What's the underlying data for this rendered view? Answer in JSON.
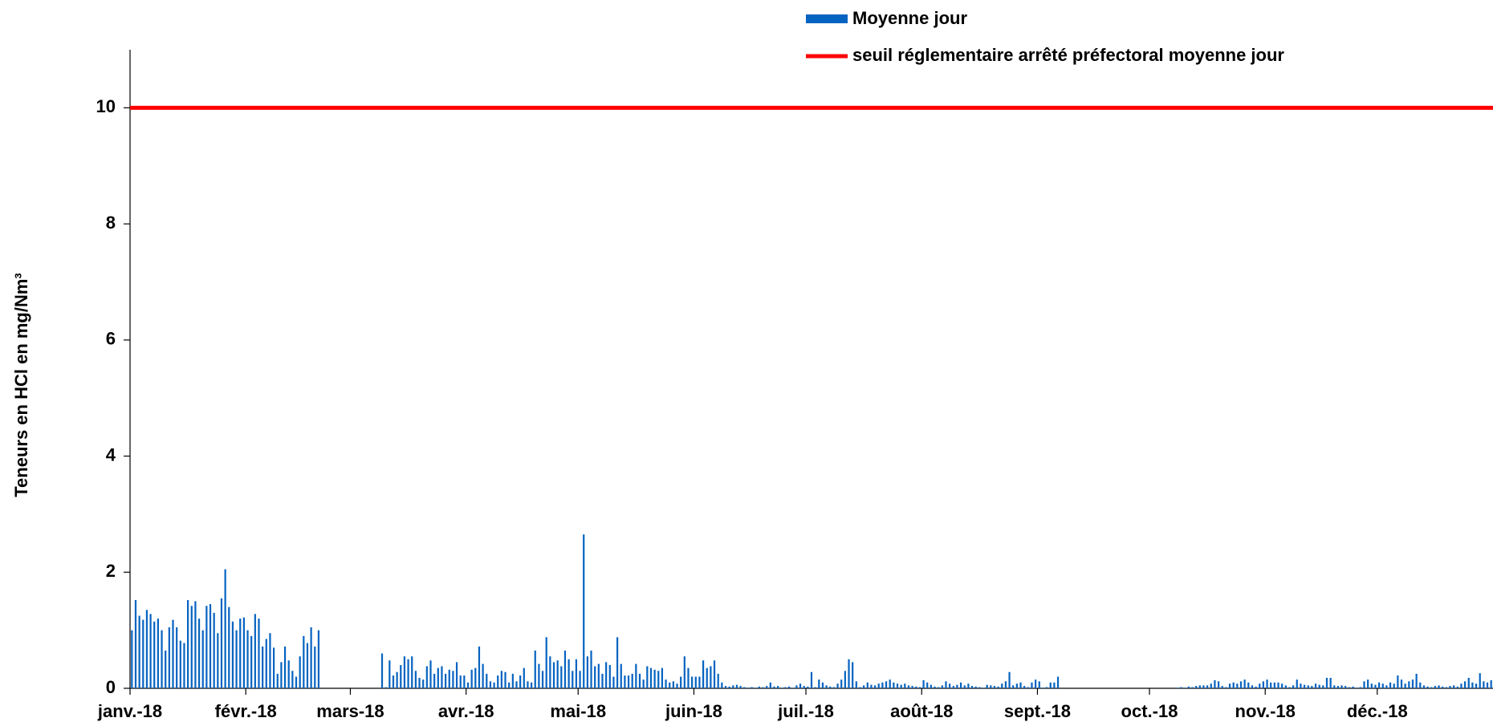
{
  "chart_data": {
    "type": "bar",
    "y_label": "Teneurs en HCl en mg/Nm³",
    "categories": [
      "janv.-18",
      null,
      null,
      null,
      null,
      null,
      null,
      null,
      null,
      null,
      null,
      null,
      null,
      null,
      null,
      null,
      null,
      null,
      null,
      null,
      null,
      null,
      null,
      null,
      null,
      null,
      null,
      null,
      null,
      null,
      null,
      "févr.-18",
      null,
      null,
      null,
      null,
      null,
      null,
      null,
      null,
      null,
      null,
      null,
      null,
      null,
      null,
      null,
      null,
      null,
      null,
      null,
      null,
      null,
      null,
      null,
      null,
      null,
      null,
      null,
      "mars-18",
      null,
      null,
      null,
      null,
      null,
      null,
      null,
      null,
      null,
      null,
      null,
      null,
      null,
      null,
      null,
      null,
      null,
      null,
      null,
      null,
      null,
      null,
      null,
      null,
      null,
      null,
      null,
      null,
      null,
      null,
      "avr.-18",
      null,
      null,
      null,
      null,
      null,
      null,
      null,
      null,
      null,
      null,
      null,
      null,
      null,
      null,
      null,
      null,
      null,
      null,
      null,
      null,
      null,
      null,
      null,
      null,
      null,
      null,
      null,
      null,
      null,
      "mai-18",
      null,
      null,
      null,
      null,
      null,
      null,
      null,
      null,
      null,
      null,
      null,
      null,
      null,
      null,
      null,
      null,
      null,
      null,
      null,
      null,
      null,
      null,
      null,
      null,
      null,
      null,
      null,
      null,
      null,
      null,
      "juin-18",
      null,
      null,
      null,
      null,
      null,
      null,
      null,
      null,
      null,
      null,
      null,
      null,
      null,
      null,
      null,
      null,
      null,
      null,
      null,
      null,
      null,
      null,
      null,
      null,
      null,
      null,
      null,
      null,
      null,
      "juil.-18",
      null,
      null,
      null,
      null,
      null,
      null,
      null,
      null,
      null,
      null,
      null,
      null,
      null,
      null,
      null,
      null,
      null,
      null,
      null,
      null,
      null,
      null,
      null,
      null,
      null,
      null,
      null,
      null,
      null,
      null,
      "août-18",
      null,
      null,
      null,
      null,
      null,
      null,
      null,
      null,
      null,
      null,
      null,
      null,
      null,
      null,
      null,
      null,
      null,
      null,
      null,
      null,
      null,
      null,
      null,
      null,
      null,
      null,
      null,
      null,
      null,
      null,
      "sept.-18",
      null,
      null,
      null,
      null,
      null,
      null,
      null,
      null,
      null,
      null,
      null,
      null,
      null,
      null,
      null,
      null,
      null,
      null,
      null,
      null,
      null,
      null,
      null,
      null,
      null,
      null,
      null,
      null,
      null,
      "oct.-18",
      null,
      null,
      null,
      null,
      null,
      null,
      null,
      null,
      null,
      null,
      null,
      null,
      null,
      null,
      null,
      null,
      null,
      null,
      null,
      null,
      null,
      null,
      null,
      null,
      null,
      null,
      null,
      null,
      null,
      null,
      "nov.-18",
      null,
      null,
      null,
      null,
      null,
      null,
      null,
      null,
      null,
      null,
      null,
      null,
      null,
      null,
      null,
      null,
      null,
      null,
      null,
      null,
      null,
      null,
      null,
      null,
      null,
      null,
      null,
      null,
      null,
      "déc.-18",
      null,
      null,
      null,
      null,
      null,
      null,
      null,
      null,
      null,
      null,
      null,
      null,
      null,
      null,
      null,
      null,
      null,
      null,
      null,
      null,
      null,
      null,
      null,
      null,
      null,
      null,
      null,
      null,
      null,
      null
    ],
    "series": [
      {
        "name": "Moyenne jour",
        "color": "#0563c1",
        "values": [
          1.0,
          1.52,
          1.25,
          1.18,
          1.35,
          1.28,
          1.15,
          1.2,
          1.0,
          0.65,
          1.05,
          1.18,
          1.05,
          0.82,
          0.78,
          1.52,
          1.42,
          1.5,
          1.2,
          1.0,
          1.42,
          1.45,
          1.3,
          0.95,
          1.55,
          2.05,
          1.4,
          1.15,
          1.0,
          1.2,
          1.22,
          1.0,
          0.9,
          1.28,
          1.2,
          0.72,
          0.85,
          0.95,
          0.7,
          0.25,
          0.45,
          0.72,
          0.48,
          0.3,
          0.2,
          0.55,
          0.9,
          0.78,
          1.05,
          0.72,
          1.0,
          null,
          null,
          null,
          null,
          null,
          null,
          null,
          null,
          null,
          null,
          null,
          null,
          null,
          null,
          null,
          null,
          0.6,
          0.02,
          0.48,
          0.22,
          0.28,
          0.4,
          0.55,
          0.5,
          0.55,
          0.3,
          0.18,
          0.15,
          0.38,
          0.48,
          0.25,
          0.35,
          0.38,
          0.25,
          0.32,
          0.3,
          0.45,
          0.22,
          0.22,
          0.1,
          0.32,
          0.35,
          0.72,
          0.42,
          0.25,
          0.12,
          0.1,
          0.22,
          0.3,
          0.28,
          0.1,
          0.25,
          0.12,
          0.22,
          0.35,
          0.12,
          0.1,
          0.65,
          0.42,
          0.3,
          0.88,
          0.55,
          0.45,
          0.48,
          0.38,
          0.65,
          0.5,
          0.3,
          0.5,
          0.3,
          2.65,
          0.55,
          0.65,
          0.38,
          0.42,
          0.25,
          0.45,
          0.4,
          0.2,
          0.88,
          0.42,
          0.22,
          0.22,
          0.25,
          0.42,
          0.25,
          0.15,
          0.38,
          0.35,
          0.32,
          0.3,
          0.35,
          0.15,
          0.1,
          0.12,
          0.08,
          0.2,
          0.55,
          0.35,
          0.2,
          0.2,
          0.2,
          0.48,
          0.35,
          0.38,
          0.48,
          0.25,
          0.1,
          0.04,
          0.03,
          0.05,
          0.06,
          0.04,
          0.02,
          0.01,
          0.02,
          0.01,
          0.03,
          0.02,
          0.04,
          0.1,
          0.03,
          0.04,
          0.01,
          0.02,
          0.03,
          0.01,
          0.05,
          0.08,
          0.04,
          0.03,
          0.28,
          0.02,
          0.15,
          0.1,
          0.05,
          0.03,
          0.02,
          0.08,
          0.15,
          0.3,
          0.5,
          0.45,
          0.12,
          0.02,
          0.05,
          0.1,
          0.06,
          0.05,
          0.08,
          0.1,
          0.12,
          0.15,
          0.1,
          0.08,
          0.06,
          0.08,
          0.05,
          0.04,
          0.03,
          0.02,
          0.14,
          0.1,
          0.06,
          0.03,
          0.02,
          0.05,
          0.12,
          0.08,
          0.04,
          0.06,
          0.1,
          0.05,
          0.08,
          0.04,
          0.03,
          0.02,
          0.01,
          0.06,
          0.05,
          0.04,
          0.03,
          0.08,
          0.12,
          0.28,
          0.05,
          0.08,
          0.1,
          0.04,
          0.02,
          0.1,
          0.15,
          0.12,
          0.01,
          0.02,
          0.1,
          0.1,
          0.2,
          null,
          null,
          null,
          null,
          null,
          null,
          null,
          null,
          null,
          null,
          null,
          null,
          null,
          null,
          null,
          null,
          null,
          null,
          null,
          null,
          null,
          null,
          null,
          null,
          null,
          null,
          null,
          null,
          null,
          null,
          null,
          0.01,
          0.02,
          0.01,
          0.03,
          0.02,
          0.04,
          0.05,
          0.05,
          0.05,
          0.08,
          0.14,
          0.12,
          0.04,
          0.02,
          0.08,
          0.1,
          0.08,
          0.12,
          0.15,
          0.1,
          0.05,
          0.03,
          0.08,
          0.12,
          0.15,
          0.1,
          0.1,
          0.1,
          0.08,
          0.05,
          0.02,
          0.05,
          0.15,
          0.08,
          0.06,
          0.05,
          0.04,
          0.08,
          0.06,
          0.05,
          0.18,
          0.18,
          0.05,
          0.04,
          0.05,
          0.04,
          0.02,
          0.03,
          0.01,
          0.02,
          0.12,
          0.15,
          0.08,
          0.06,
          0.1,
          0.08,
          0.05,
          0.1,
          0.08,
          0.22,
          0.15,
          0.08,
          0.12,
          0.15,
          0.25,
          0.1,
          0.05,
          0.03,
          0.02,
          0.04,
          0.05,
          0.03,
          0.02,
          0.04,
          0.05,
          0.03,
          0.08,
          0.12,
          0.18,
          0.1,
          0.08,
          0.26,
          0.12,
          0.1,
          0.14
        ]
      }
    ],
    "reference_line": {
      "name": "seuil réglementaire arrêté préfectoral moyenne jour",
      "value": 10,
      "color": "#ff0000"
    },
    "ylim": [
      0,
      11
    ],
    "yticks": [
      0,
      2,
      4,
      6,
      8,
      10
    ],
    "grid": false
  }
}
